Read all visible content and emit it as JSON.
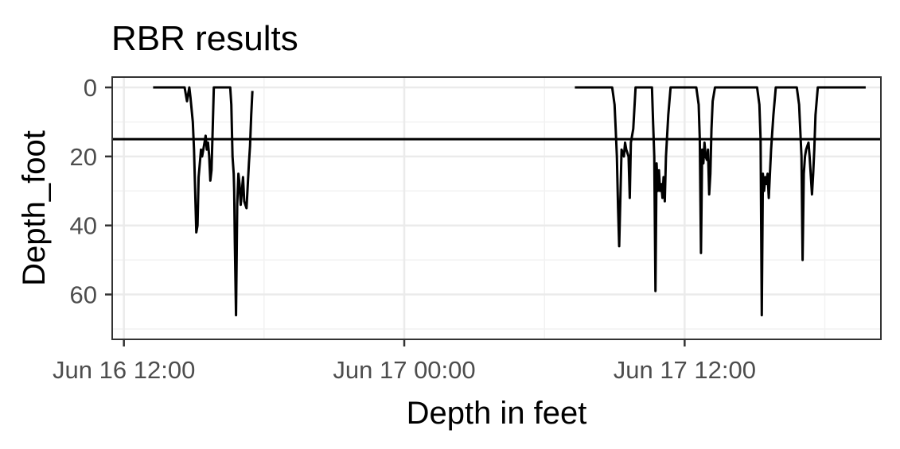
{
  "chart_data": {
    "type": "line",
    "title": "RBR results",
    "xlabel": "Depth in feet",
    "ylabel": "Depth_foot",
    "x_unit": "hours",
    "x_ticks": [
      {
        "value": 0,
        "label": "Jun 16 12:00"
      },
      {
        "value": 12,
        "label": "Jun 17 00:00"
      },
      {
        "value": 24,
        "label": "Jun 17 12:00"
      }
    ],
    "y_ticks": [
      0,
      20,
      40,
      60
    ],
    "xlim": [
      -0.5,
      32.4
    ],
    "ylim": [
      73,
      -3
    ],
    "y_reversed": true,
    "grid": true,
    "hline": 15,
    "series": [
      {
        "color": "#000000",
        "x": [
          1.25,
          1.5,
          2.0,
          2.5,
          2.6,
          2.7,
          2.75,
          2.8,
          2.85,
          2.95,
          3.0,
          3.1,
          3.15,
          3.2,
          3.25,
          3.3,
          3.35,
          3.45,
          3.5,
          3.55,
          3.6,
          3.65,
          3.7,
          3.75,
          3.8,
          3.85,
          3.95,
          4.05,
          4.15,
          4.25,
          4.35,
          4.45,
          4.55,
          4.6,
          4.65,
          4.7,
          4.72,
          4.75,
          4.8,
          4.85,
          4.9,
          4.95,
          5.0,
          5.05,
          5.1,
          5.15,
          5.25,
          5.35,
          5.4,
          5.45,
          5.5
        ],
        "y": [
          0,
          0,
          0,
          0,
          0,
          4,
          2,
          0,
          3,
          10,
          18,
          42,
          40,
          26,
          22,
          18,
          20,
          16,
          14,
          18,
          16,
          20,
          27,
          24,
          12,
          0,
          0,
          0,
          0,
          0,
          0,
          0,
          0,
          5,
          20,
          25,
          30,
          45,
          66,
          34,
          25,
          28,
          34,
          30,
          26,
          33,
          35,
          22,
          17,
          8,
          1
        ]
      },
      {
        "color": "#000000",
        "x": [
          19.3,
          19.6,
          20.0,
          20.5,
          20.8,
          20.9,
          21.0,
          21.05,
          21.1,
          21.15,
          21.2,
          21.3,
          21.4,
          21.45,
          21.5,
          21.6,
          21.65,
          21.7,
          21.8,
          21.9,
          22.1,
          22.3,
          22.4,
          22.5,
          22.6,
          22.65,
          22.7,
          22.75,
          22.8,
          22.85,
          22.9,
          22.95,
          23.0,
          23.05,
          23.1,
          23.15,
          23.2,
          23.3,
          23.4,
          23.6,
          23.8,
          24.0,
          24.2,
          24.4,
          24.5,
          24.6,
          24.65,
          24.7,
          24.75,
          24.8,
          24.85,
          24.9,
          24.95,
          25.0,
          25.05,
          25.1,
          25.15,
          25.2,
          25.3,
          25.4,
          25.6,
          25.8,
          26.0,
          26.3,
          26.6,
          26.9,
          27.1,
          27.2,
          27.25,
          27.3,
          27.35,
          27.4,
          27.45,
          27.5,
          27.55,
          27.6,
          27.7,
          27.8,
          27.9,
          28.0,
          28.2,
          28.4,
          28.6,
          28.8,
          28.9,
          29.0,
          29.05,
          29.1,
          29.15,
          29.2,
          29.25,
          29.3,
          29.35,
          29.45,
          29.5,
          29.55,
          29.6,
          29.7,
          29.8,
          29.9,
          30.1,
          30.3,
          30.5,
          30.7,
          31.0,
          31.3,
          31.5,
          31.65,
          31.7,
          31.75
        ],
        "y": [
          0,
          0,
          0,
          0,
          0,
          0,
          5,
          12,
          20,
          35,
          46,
          18,
          20,
          16,
          18,
          20,
          32,
          16,
          12,
          0,
          0,
          0,
          0,
          0,
          0,
          10,
          20,
          59,
          22,
          30,
          24,
          30,
          28,
          32,
          26,
          33,
          20,
          8,
          0,
          0,
          0,
          0,
          0,
          0,
          0,
          5,
          15,
          48,
          18,
          22,
          16,
          20,
          21,
          18,
          31,
          25,
          12,
          4,
          0,
          0,
          0,
          0,
          0,
          0,
          0,
          0,
          0,
          5,
          15,
          66,
          25,
          30,
          26,
          28,
          25,
          32,
          18,
          8,
          0,
          0,
          0,
          0,
          0,
          0,
          5,
          20,
          50,
          25,
          20,
          18,
          17,
          16,
          20,
          31,
          25,
          18,
          8,
          0,
          0,
          0,
          0,
          0,
          0,
          0,
          0,
          0,
          0,
          0,
          0,
          0
        ]
      }
    ]
  }
}
